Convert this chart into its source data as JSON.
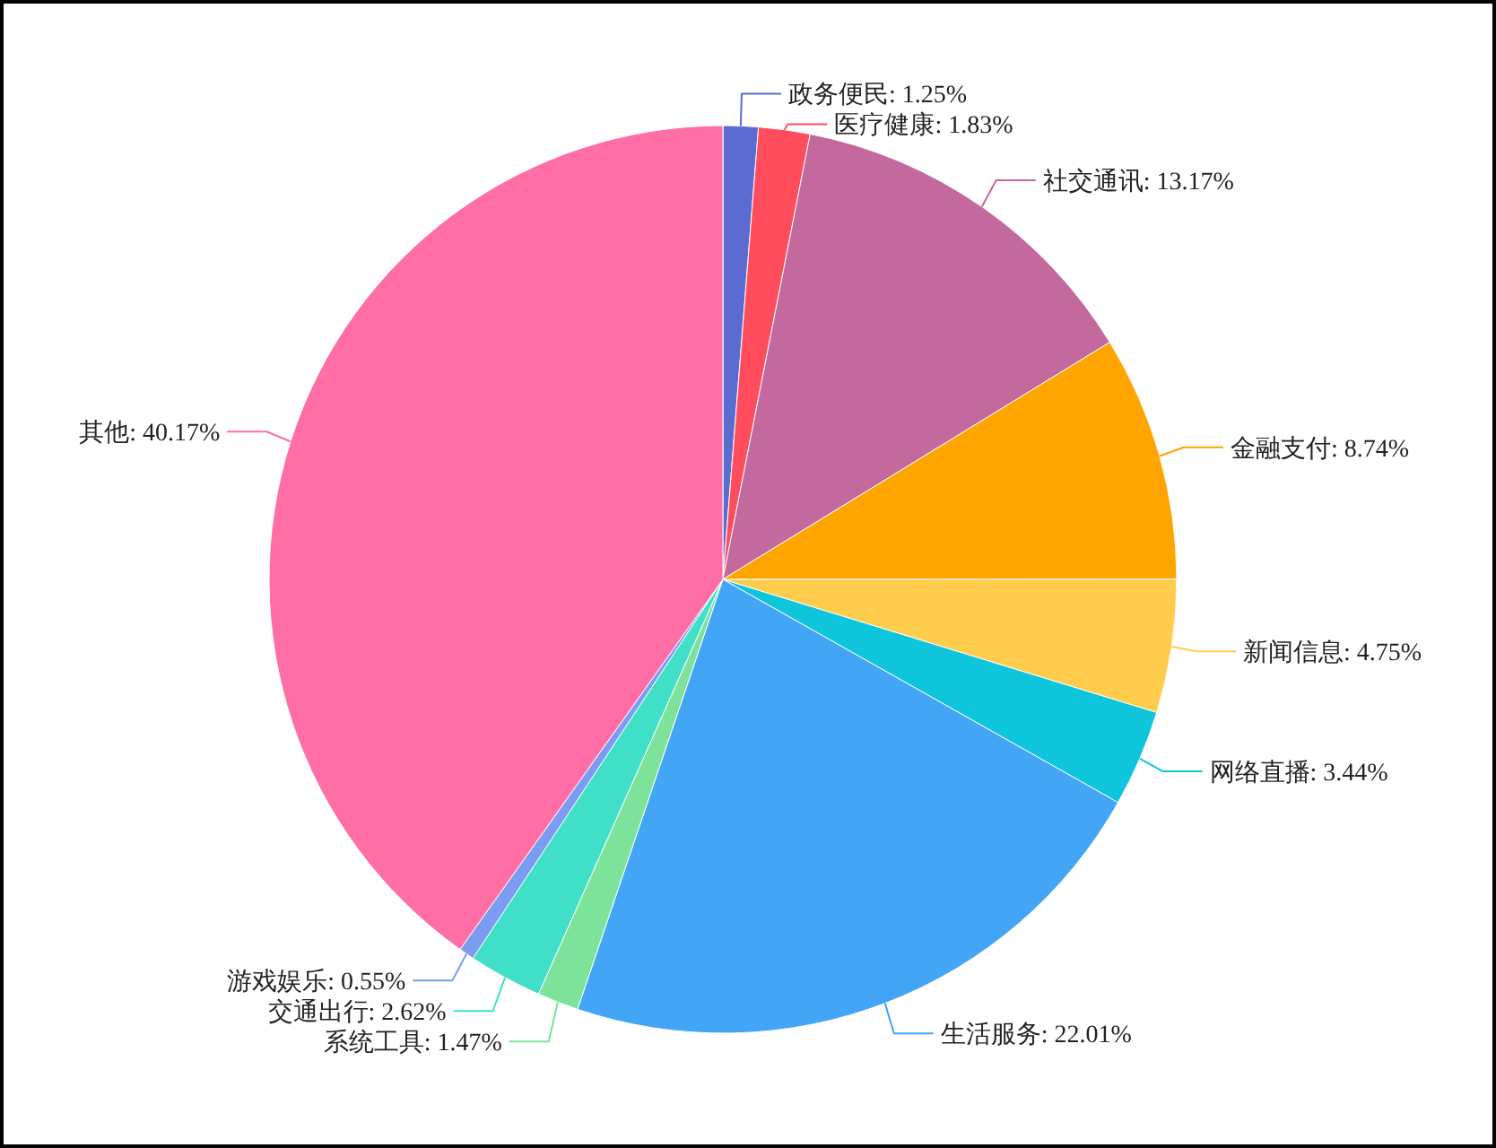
{
  "chart_data": {
    "type": "pie",
    "categories": [
      "政务便民",
      "医疗健康",
      "社交通讯",
      "金融支付",
      "新闻信息",
      "网络直播",
      "生活服务",
      "系统工具",
      "交通出行",
      "游戏娱乐",
      "其他"
    ],
    "values": [
      1.25,
      1.83,
      13.17,
      8.74,
      4.75,
      3.44,
      22.01,
      1.47,
      2.62,
      0.55,
      40.17
    ],
    "value_labels": [
      "1.25%",
      "1.83%",
      "13.17%",
      "8.74%",
      "4.75%",
      "3.44%",
      "22.01%",
      "1.47%",
      "2.62%",
      "0.55%",
      "40.17%"
    ],
    "colors": [
      "#5b6bd1",
      "#ff4d5e",
      "#c4699e",
      "#ffa500",
      "#ffcc4d",
      "#0fc5dc",
      "#42a5f5",
      "#7de39a",
      "#40e0c8",
      "#7b9cf0",
      "#ff6fa6"
    ]
  }
}
